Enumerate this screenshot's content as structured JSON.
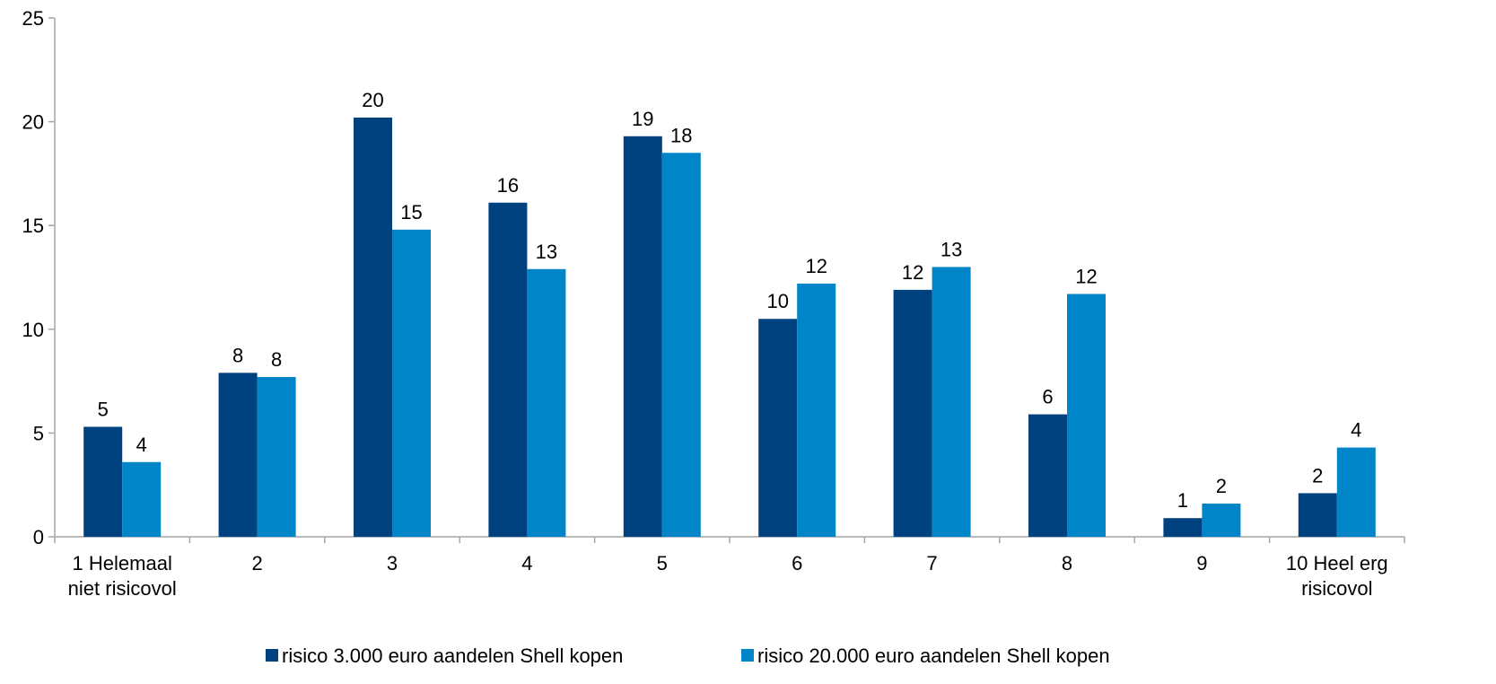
{
  "chart_data": {
    "type": "bar",
    "categories": [
      [
        "1 Helemaal",
        "niet risicovol"
      ],
      [
        "2"
      ],
      [
        "3"
      ],
      [
        "4"
      ],
      [
        "5"
      ],
      [
        "6"
      ],
      [
        "7"
      ],
      [
        "8"
      ],
      [
        "9"
      ],
      [
        "10 Heel erg",
        "risicovol"
      ]
    ],
    "ylim": [
      0,
      25
    ],
    "yticks": [
      "0",
      "5",
      "10",
      "15",
      "20",
      "25"
    ],
    "legend_position": "bottom",
    "grid": false,
    "series": [
      {
        "name": "risico 3.000 euro aandelen Shell kopen",
        "color": "#00427f",
        "values": [
          5.3,
          7.9,
          20.2,
          16.1,
          19.3,
          10.5,
          11.9,
          5.9,
          0.9,
          2.1
        ],
        "labels": [
          "5",
          "8",
          "20",
          "16",
          "19",
          "10",
          "12",
          "6",
          "1",
          "2"
        ]
      },
      {
        "name": "risico 20.000 euro aandelen Shell kopen",
        "color": "#0085c8",
        "values": [
          3.6,
          7.7,
          14.8,
          12.9,
          18.5,
          12.2,
          13.0,
          11.7,
          1.6,
          4.3
        ],
        "labels": [
          "4",
          "8",
          "15",
          "13",
          "18",
          "12",
          "13",
          "12",
          "2",
          "4"
        ]
      }
    ]
  }
}
